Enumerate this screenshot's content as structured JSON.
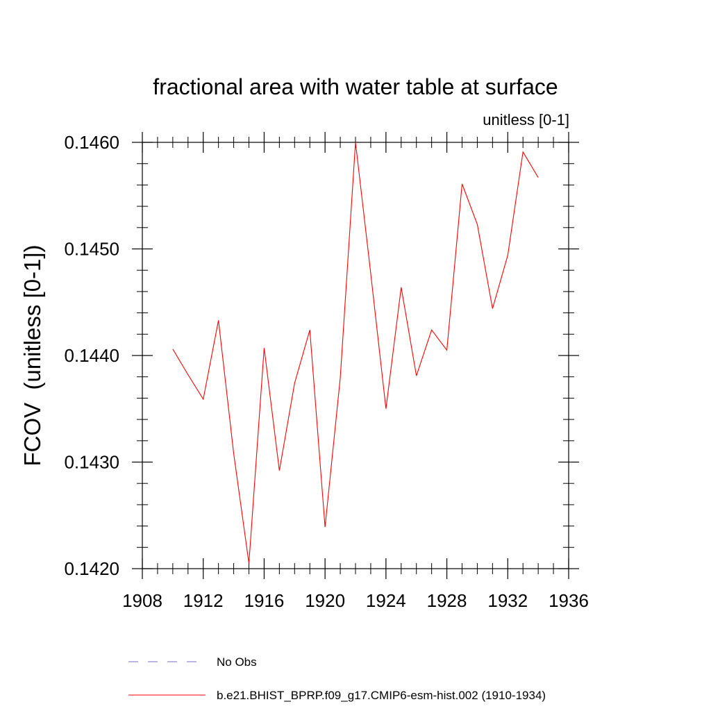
{
  "chart_data": {
    "type": "line",
    "title": "fractional area with water table at surface",
    "subtitle": "unitless [0-1]",
    "ylabel": "FCOV  (unitless [0-1])",
    "xlabel": "",
    "xlim": [
      1908,
      1936
    ],
    "ylim": [
      0.142,
      0.146
    ],
    "x_ticks": [
      1908,
      1912,
      1916,
      1920,
      1924,
      1928,
      1932,
      1936
    ],
    "y_ticks": [
      0.142,
      0.143,
      0.144,
      0.145,
      0.146
    ],
    "x_tick_labels": [
      "1908",
      "1912",
      "1916",
      "1920",
      "1924",
      "1928",
      "1932",
      "1936"
    ],
    "y_tick_labels": [
      "0.1420",
      "0.1430",
      "0.1440",
      "0.1450",
      "0.1460"
    ],
    "grid": false,
    "legend_position": "bottom",
    "series": [
      {
        "name": "b.e21.BHIST_BPRP.f09_g17.CMIP6-esm-hist.002 (1910-1934)",
        "color": "#ff0000",
        "style": "solid",
        "x": [
          1910,
          1911,
          1912,
          1913,
          1914,
          1915,
          1916,
          1917,
          1918,
          1919,
          1920,
          1921,
          1922,
          1923,
          1924,
          1925,
          1926,
          1927,
          1928,
          1929,
          1930,
          1931,
          1932,
          1933,
          1934
        ],
        "y": [
          0.14406,
          0.14382,
          0.14359,
          0.14433,
          0.14308,
          0.14205,
          0.14407,
          0.14292,
          0.14374,
          0.14424,
          0.14239,
          0.14379,
          0.146,
          0.14477,
          0.1435,
          0.14464,
          0.14381,
          0.14424,
          0.14405,
          0.14561,
          0.14523,
          0.14444,
          0.14494,
          0.14591,
          0.14567
        ]
      }
    ],
    "legend": [
      {
        "label": "No Obs",
        "color": "#7b68c8",
        "style": "dashed"
      },
      {
        "label": "b.e21.BHIST_BPRP.f09_g17.CMIP6-esm-hist.002 (1910-1934)",
        "color": "#ff0000",
        "style": "solid"
      }
    ]
  }
}
